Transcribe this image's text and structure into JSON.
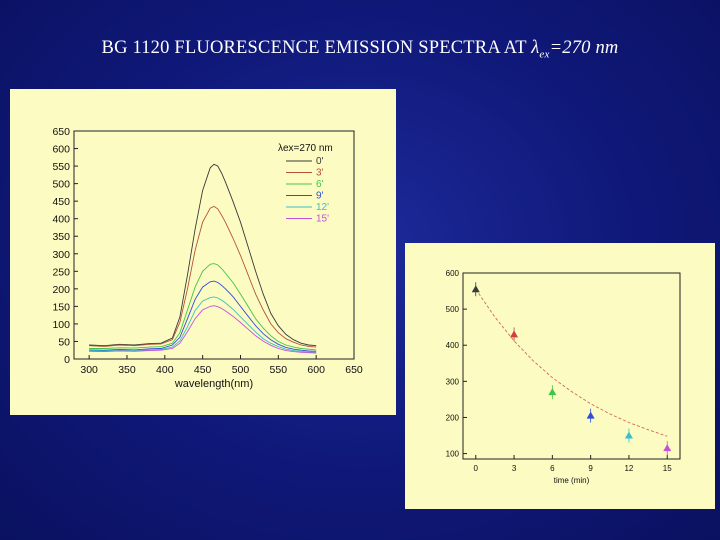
{
  "slide": {
    "title_main": "BG 1120 FLUORESCENCE EMISSION SPECTRA  AT ",
    "title_lambda": "λ",
    "title_sub": "ex",
    "title_tail": "=270 nm"
  },
  "chart_data": [
    {
      "type": "line",
      "xlabel": "wavelength(nm)",
      "ylabel": "",
      "xlim": [
        280,
        650
      ],
      "ylim": [
        0,
        650
      ],
      "xticks": [
        300,
        350,
        400,
        450,
        500,
        550,
        600,
        650
      ],
      "yticks": [
        0,
        50,
        100,
        150,
        200,
        250,
        300,
        350,
        400,
        450,
        500,
        550,
        600,
        650
      ],
      "legend_title": "λex=270 nm",
      "legend_placement": "top-right",
      "x": [
        300,
        320,
        340,
        360,
        380,
        395,
        410,
        420,
        430,
        440,
        450,
        460,
        465,
        470,
        475,
        480,
        490,
        500,
        510,
        520,
        530,
        540,
        550,
        560,
        570,
        580,
        590,
        600
      ],
      "series": [
        {
          "name": "0'",
          "color": "#3a3a3a",
          "values": [
            40,
            38,
            42,
            40,
            44,
            45,
            60,
            120,
            240,
            370,
            480,
            545,
            555,
            550,
            530,
            505,
            450,
            390,
            320,
            250,
            185,
            130,
            95,
            70,
            55,
            45,
            40,
            38
          ]
        },
        {
          "name": "3'",
          "color": "#b5533a",
          "values": [
            38,
            36,
            40,
            38,
            42,
            43,
            55,
            105,
            200,
            310,
            390,
            430,
            435,
            428,
            410,
            390,
            345,
            295,
            240,
            185,
            140,
            100,
            75,
            58,
            48,
            40,
            36,
            34
          ]
        },
        {
          "name": "6'",
          "color": "#44c444",
          "values": [
            30,
            30,
            32,
            31,
            34,
            35,
            45,
            75,
            140,
            205,
            250,
            270,
            272,
            268,
            258,
            245,
            218,
            185,
            150,
            115,
            88,
            66,
            50,
            40,
            34,
            30,
            28,
            26
          ]
        },
        {
          "name": "9'",
          "color": "#2f4ed8",
          "values": [
            26,
            25,
            27,
            26,
            29,
            30,
            40,
            62,
            115,
            170,
            205,
            220,
            222,
            218,
            210,
            200,
            178,
            150,
            122,
            95,
            72,
            55,
            42,
            33,
            28,
            25,
            23,
            22
          ]
        },
        {
          "name": "12'",
          "color": "#38c0cc",
          "values": [
            24,
            23,
            25,
            24,
            26,
            27,
            34,
            52,
            92,
            138,
            165,
            175,
            177,
            174,
            168,
            160,
            142,
            120,
            98,
            77,
            58,
            45,
            35,
            28,
            24,
            22,
            20,
            19
          ]
        },
        {
          "name": "15'",
          "color": "#c850d8",
          "values": [
            22,
            21,
            23,
            22,
            24,
            25,
            30,
            45,
            78,
            115,
            140,
            150,
            152,
            149,
            144,
            137,
            122,
            104,
            85,
            66,
            51,
            39,
            30,
            24,
            21,
            19,
            18,
            17
          ]
        }
      ]
    },
    {
      "type": "scatter",
      "xlabel": "time (min)",
      "ylabel": "",
      "xlim": [
        -1,
        16
      ],
      "ylim": [
        100,
        600
      ],
      "xticks": [
        0,
        3,
        6,
        9,
        12,
        15
      ],
      "yticks": [
        100,
        200,
        300,
        400,
        500,
        600
      ],
      "points": [
        {
          "x": 0,
          "y": 555,
          "color": "#3a3a3a"
        },
        {
          "x": 3,
          "y": 430,
          "color": "#d04040"
        },
        {
          "x": 6,
          "y": 270,
          "color": "#44c444"
        },
        {
          "x": 9,
          "y": 205,
          "color": "#2f4ed8"
        },
        {
          "x": 12,
          "y": 150,
          "color": "#38c0cc"
        },
        {
          "x": 15,
          "y": 115,
          "color": "#c850d8"
        }
      ],
      "fit": {
        "type": "exponential",
        "color": "#d06a5a",
        "x": [
          0,
          1.5,
          3,
          4.5,
          6,
          7.5,
          9,
          10.5,
          12,
          13.5,
          15
        ],
        "y": [
          555,
          478,
          412,
          357,
          310,
          272,
          238,
          210,
          186,
          166,
          148
        ]
      }
    }
  ]
}
